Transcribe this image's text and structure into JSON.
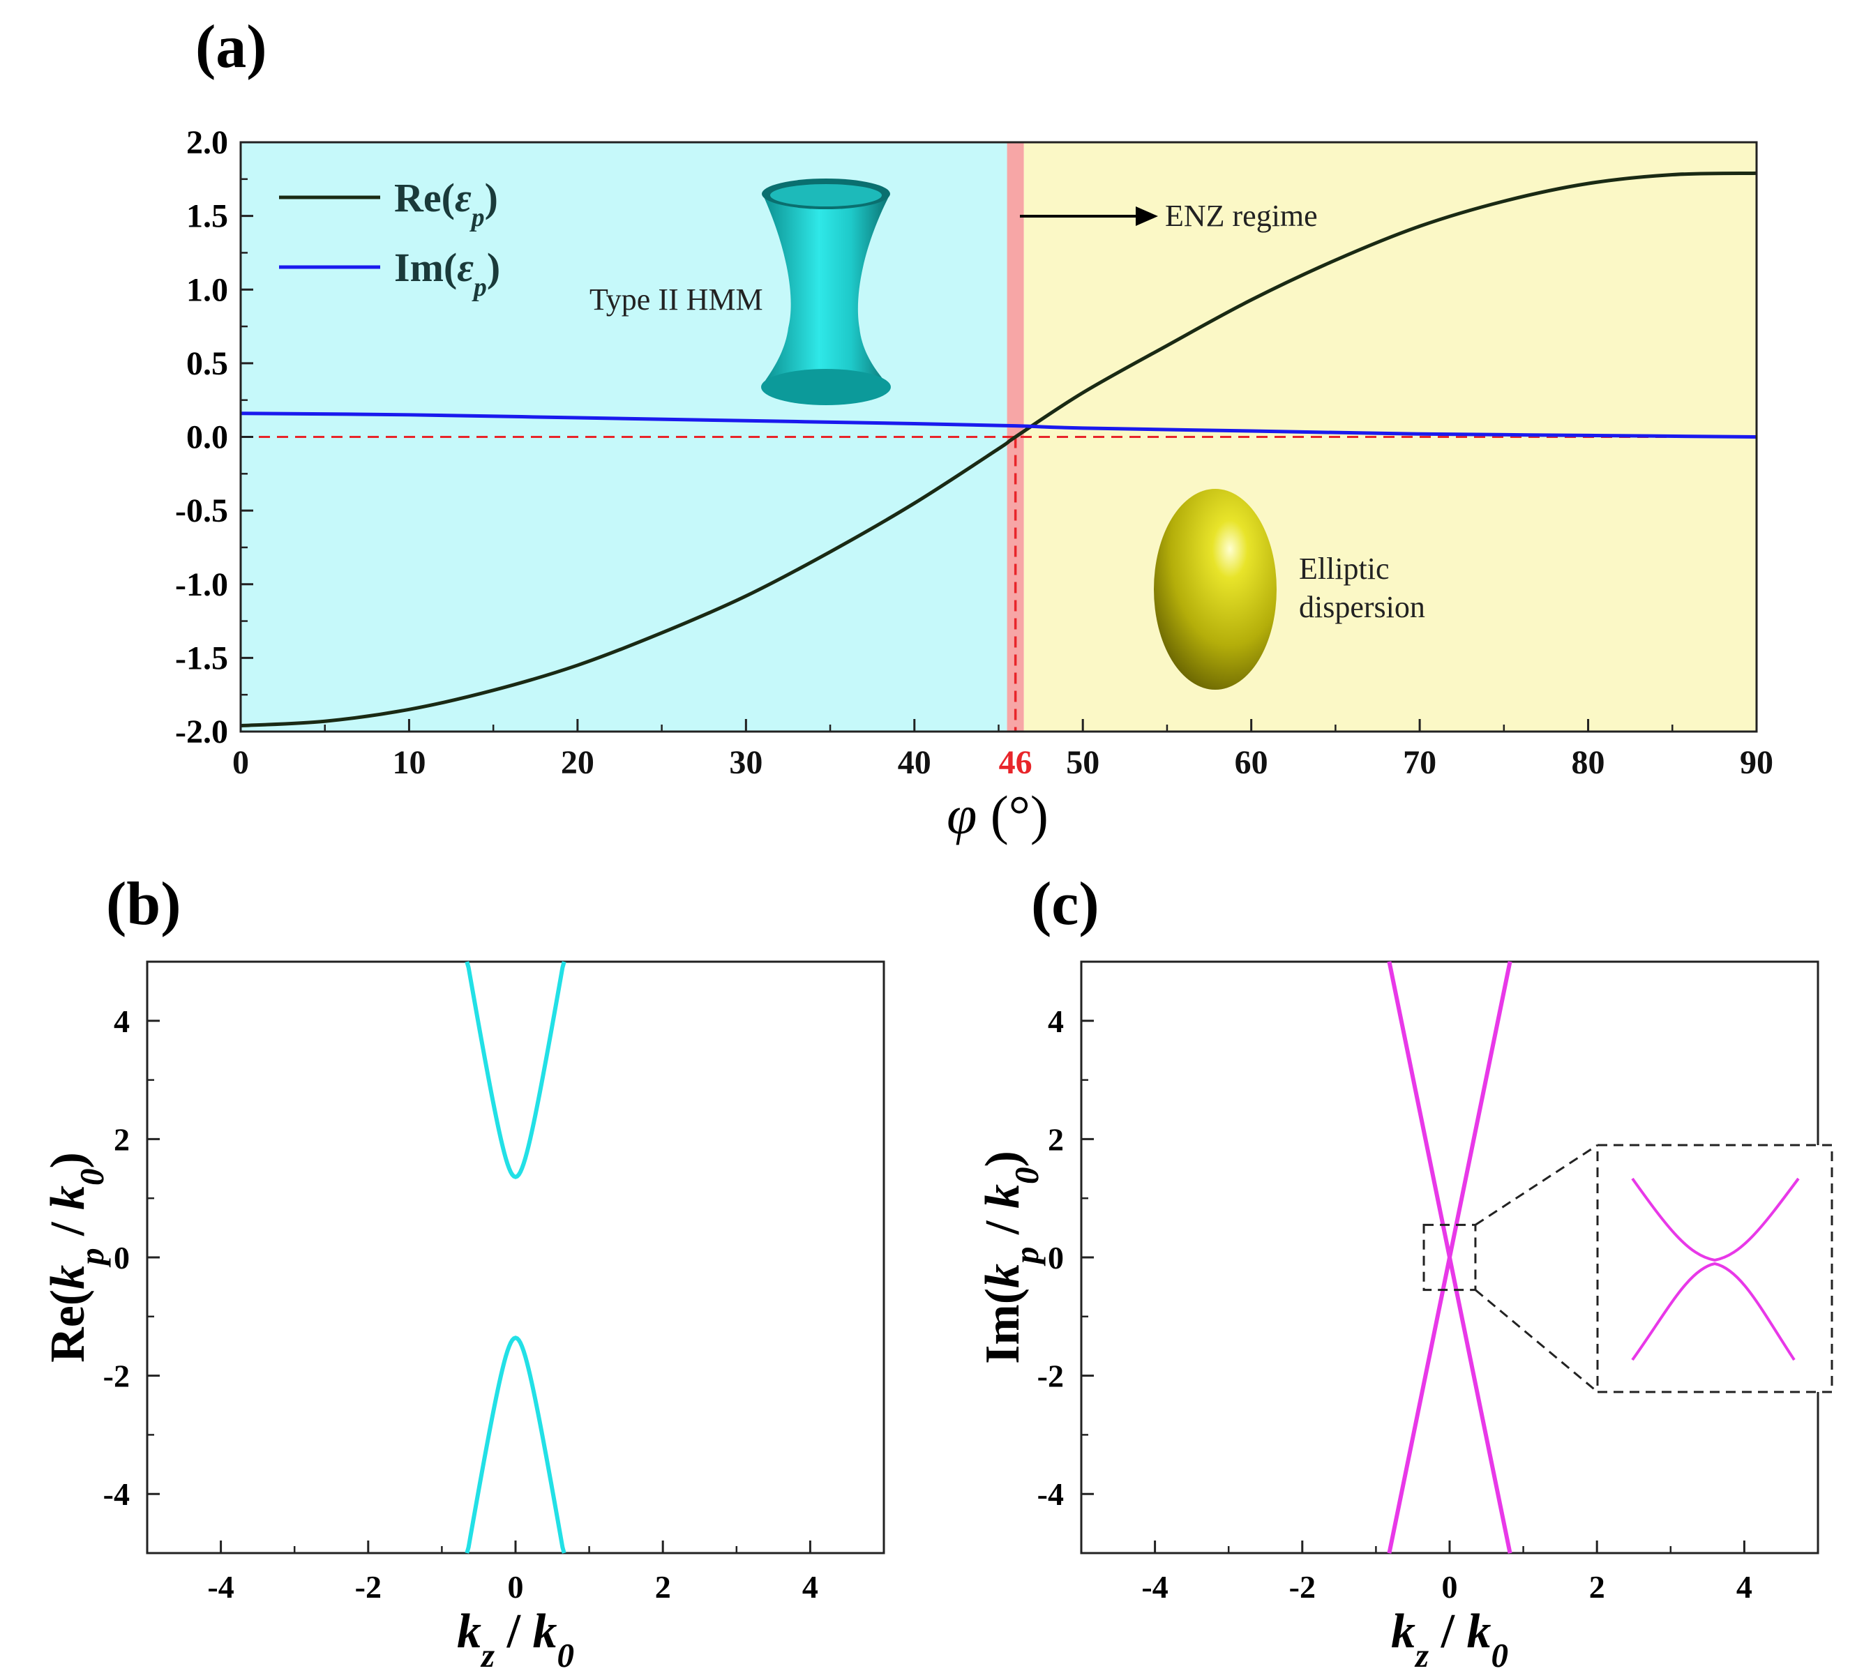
{
  "chart_data": [
    {
      "panel": "(a)",
      "type": "line",
      "xlabel_symbol": "φ",
      "xlabel_unit": "(°)",
      "xlim": [
        0,
        90
      ],
      "ylim": [
        -2.0,
        2.0
      ],
      "xticks": [
        "0",
        "10",
        "20",
        "30",
        "40",
        "46",
        "50",
        "60",
        "70",
        "80",
        "90"
      ],
      "yticks": [
        "2.0",
        "1.5",
        "1.0",
        "0.5",
        "0.0",
        "-0.5",
        "-1.0",
        "-1.5",
        "-2.0"
      ],
      "highlight_tick": "46",
      "enz_angle": 46,
      "regions": [
        {
          "name": "Type II HMM",
          "from": 0,
          "to": 45.5,
          "color": "#c6f9fa"
        },
        {
          "name": "ENZ",
          "from": 45.5,
          "to": 46.5,
          "color": "#f7a6a6"
        },
        {
          "name": "Elliptic",
          "from": 46.5,
          "to": 90,
          "color": "#fbf8c6"
        }
      ],
      "legend": [
        {
          "label_main": "Re(",
          "label_sym": "ε",
          "label_sub": "p",
          "label_end": ")",
          "color": "#1a2a14"
        },
        {
          "label_main": "Im(",
          "label_sym": "ε",
          "label_sub": "p",
          "label_end": ")",
          "color": "#1a1aee"
        }
      ],
      "series": [
        {
          "name": "Re(εp)",
          "color": "#1a2a14",
          "x": [
            0,
            5,
            10,
            15,
            20,
            25,
            30,
            35,
            40,
            45,
            46,
            50,
            55,
            60,
            65,
            70,
            75,
            80,
            85,
            90
          ],
          "y": [
            -1.96,
            -1.93,
            -1.85,
            -1.72,
            -1.55,
            -1.33,
            -1.08,
            -0.78,
            -0.45,
            -0.08,
            0.0,
            0.3,
            0.62,
            0.93,
            1.2,
            1.43,
            1.6,
            1.72,
            1.78,
            1.79
          ]
        },
        {
          "name": "Im(εp)",
          "color": "#1a1aee",
          "x": [
            0,
            10,
            20,
            30,
            40,
            46,
            50,
            60,
            70,
            80,
            90
          ],
          "y": [
            0.16,
            0.15,
            0.13,
            0.11,
            0.09,
            0.075,
            0.06,
            0.04,
            0.02,
            0.01,
            0.0
          ]
        }
      ],
      "annotations": {
        "hmm": "Type II HMM",
        "enz": "ENZ regime",
        "elliptic_line1": "Elliptic",
        "elliptic_line2": "dispersion"
      }
    },
    {
      "panel": "(b)",
      "type": "line",
      "xlabel": {
        "k": "k",
        "sub1": "z",
        "mid": " / ",
        "k2": "k",
        "sub2": "0"
      },
      "ylabel": {
        "pre": "Re(",
        "k": "k",
        "sub1": "p",
        "mid": " / ",
        "k2": "k",
        "sub2": "0",
        "post": ")"
      },
      "xlim": [
        -5,
        5
      ],
      "ylim": [
        -5,
        5
      ],
      "xticks": [
        "-4",
        "-2",
        "0",
        "2",
        "4"
      ],
      "yticks": [
        "4",
        "2",
        "0",
        "-2",
        "-4"
      ],
      "series": [
        {
          "name": "upper branch",
          "color": "#22e0e6",
          "equation": "y = sqrt(1.85 + 54.5 x^2)",
          "xrange": [
            -0.66,
            0.66
          ],
          "sign": 1
        },
        {
          "name": "lower branch",
          "color": "#22e0e6",
          "equation": "y = -sqrt(1.85 + 54.5 x^2)",
          "xrange": [
            -0.66,
            0.66
          ],
          "sign": -1
        }
      ]
    },
    {
      "panel": "(c)",
      "type": "line",
      "xlabel": {
        "k": "k",
        "sub1": "z",
        "mid": " / ",
        "k2": "k",
        "sub2": "0"
      },
      "ylabel": {
        "pre": "Im(",
        "k": "k",
        "sub1": "p",
        "mid": " / ",
        "k2": "k",
        "sub2": "0",
        "post": ")"
      },
      "xlim": [
        -5,
        5
      ],
      "ylim": [
        -5,
        5
      ],
      "xticks": [
        "-4",
        "-2",
        "0",
        "2",
        "4"
      ],
      "yticks": [
        "4",
        "2",
        "0",
        "-2",
        "-4"
      ],
      "series": [
        {
          "name": "branch 1",
          "color": "#e838e8",
          "equation": "y = 6.1 x",
          "xrange": [
            -0.82,
            0.82
          ]
        },
        {
          "name": "branch 2",
          "color": "#e838e8",
          "equation": "y = -6.1 x",
          "xrange": [
            -0.82,
            0.82
          ]
        }
      ],
      "inset": {
        "zoom_box_x": [
          -0.35,
          0.35
        ],
        "zoom_box_y": [
          -0.55,
          0.55
        ],
        "style": "dashed",
        "content": "two anti-crossing branches"
      }
    }
  ]
}
